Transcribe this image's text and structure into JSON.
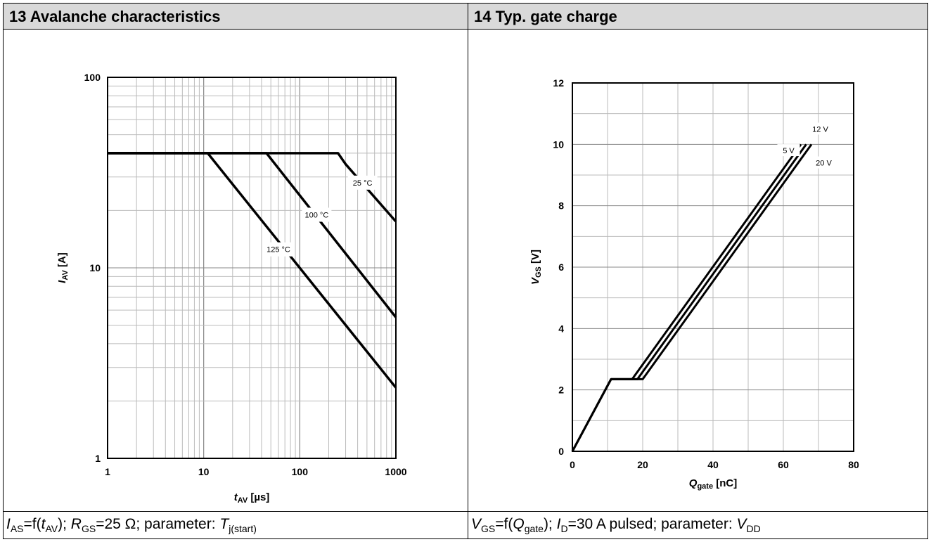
{
  "panels": {
    "left": {
      "title": "13 Avalanche characteristics",
      "caption": {
        "p1": "I",
        "p1sub": "AS",
        "p2": "=f(",
        "p3": "t",
        "p3sub": "AV",
        "p4": "); ",
        "p5": "R",
        "p5sub": "GS",
        "p6": "=25 Ω; parameter: ",
        "p7": "T",
        "p7sub": "j(start)"
      }
    },
    "right": {
      "title": "14 Typ. gate charge",
      "caption": {
        "p1": "V",
        "p1sub": "GS",
        "p2": "=f(",
        "p3": "Q",
        "p3sub": "gate",
        "p4": "); ",
        "p5": "I",
        "p5sub": "D",
        "p6": "=30 A pulsed; parameter: ",
        "p7": "V",
        "p7sub": "DD"
      }
    }
  },
  "chart_data": [
    {
      "type": "line",
      "xscale": "log",
      "yscale": "log",
      "xlim": [
        1,
        1000
      ],
      "ylim": [
        1,
        100
      ],
      "xticks": [
        "1",
        "10",
        "100",
        "1000"
      ],
      "yticks": [
        "1",
        "10",
        "100"
      ],
      "xlabel": {
        "main": "t",
        "sub": "AV",
        "unit": " [µs]"
      },
      "ylabel": {
        "main": "I",
        "sub": "AV",
        "unit": " [A]"
      },
      "grid": true,
      "series": [
        {
          "name": "25 °C",
          "label": "25 °C",
          "x": [
            1,
            250,
            300,
            1000
          ],
          "y": [
            40,
            40,
            35,
            17.5
          ]
        },
        {
          "name": "100 °C",
          "label": "100 °C",
          "x": [
            1,
            45,
            1000
          ],
          "y": [
            40,
            40,
            5.5
          ]
        },
        {
          "name": "125 °C",
          "label": "125 °C",
          "x": [
            1,
            11,
            1000
          ],
          "y": [
            40,
            40,
            2.35
          ]
        }
      ],
      "label_positions": {
        "25 °C": [
          450,
          28
        ],
        "100 °C": [
          150,
          19
        ],
        "125 °C": [
          60,
          12.5
        ]
      }
    },
    {
      "type": "line",
      "xlim": [
        0,
        80
      ],
      "ylim": [
        0,
        12
      ],
      "xticks": [
        "0",
        "20",
        "40",
        "60",
        "80"
      ],
      "yticks": [
        "0",
        "2",
        "4",
        "6",
        "8",
        "10",
        "12"
      ],
      "xlabel": {
        "main": "Q",
        "sub": "gate",
        "unit": " [nC]"
      },
      "ylabel": {
        "main": "V",
        "sub": "GS",
        "unit": " [V]"
      },
      "grid": true,
      "series": [
        {
          "name": "5 V",
          "label": "5 V",
          "x": [
            0,
            11,
            17,
            65
          ],
          "y": [
            0,
            2.35,
            2.35,
            10
          ]
        },
        {
          "name": "12 V",
          "label": "12 V",
          "x": [
            0,
            11,
            18.5,
            66.5
          ],
          "y": [
            0,
            2.35,
            2.35,
            10
          ]
        },
        {
          "name": "20 V",
          "label": "20 V",
          "x": [
            0,
            11,
            20,
            68
          ],
          "y": [
            0,
            2.35,
            2.35,
            10
          ]
        }
      ],
      "label_positions": {
        "5 V": [
          61.5,
          9.8
        ],
        "12 V": [
          70.5,
          10.5
        ],
        "20 V": [
          71.5,
          9.4
        ]
      }
    }
  ]
}
